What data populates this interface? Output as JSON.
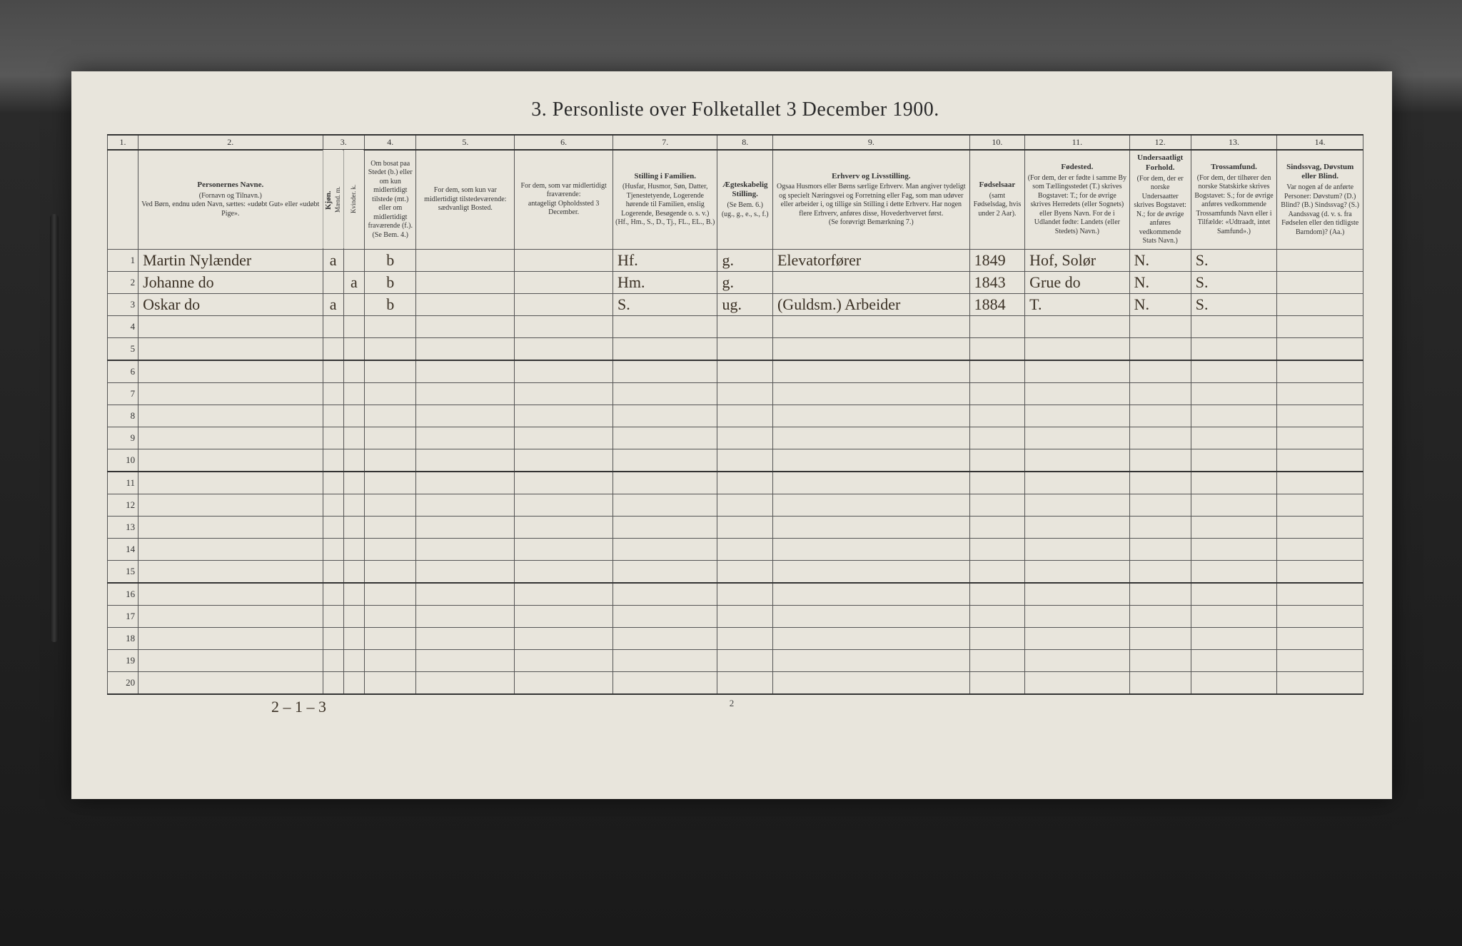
{
  "title": "3. Personliste over Folketallet 3 December 1900.",
  "page_number": "2",
  "footer_tally": "2 – 1 – 3",
  "columns": {
    "numbers": [
      "1.",
      "2.",
      "3.",
      "4.",
      "5.",
      "6.",
      "7.",
      "8.",
      "9.",
      "10.",
      "11.",
      "12.",
      "13.",
      "14."
    ],
    "widths_pct": [
      2.5,
      15,
      1.7,
      1.7,
      4.2,
      8,
      8,
      8.5,
      4.5,
      16,
      4.5,
      8.5,
      5,
      7,
      7
    ],
    "headers": [
      {
        "title": "",
        "text": ""
      },
      {
        "title": "Personernes Navne.",
        "text": "(Fornavn og Tilnavn.)\nVed Børn, endnu uden Navn, sættes: «udøbt Gut» eller «udøbt Pige»."
      },
      {
        "title": "Kjøn.",
        "text": "Mænd. m.",
        "sub": true
      },
      {
        "title": "",
        "text": "Kvinder. k.",
        "sub": true
      },
      {
        "title": "",
        "text": "Om bosat paa Stedet (b.) eller om kun midlertidigt tilstede (mt.) eller om midlertidigt fraværende (f.). (Se Bem. 4.)"
      },
      {
        "title": "",
        "text": "For dem, som kun var midlertidigt tilstedeværende:\nsædvanligt Bosted."
      },
      {
        "title": "",
        "text": "For dem, som var midlertidigt fraværende:\nantageligt Opholdssted 3 December."
      },
      {
        "title": "Stilling i Familien.",
        "text": "(Husfar, Husmor, Søn, Datter, Tjenestetyende, Logerende hørende til Familien, enslig Logerende, Besøgende o. s. v.)\n(Hf., Hm., S., D., Tj., FL., EL., B.)"
      },
      {
        "title": "Ægteskabelig Stilling.",
        "text": "(Se Bem. 6.)\n(ug., g., e., s., f.)"
      },
      {
        "title": "Erhverv og Livsstilling.",
        "text": "Ogsaa Husmors eller Børns særlige Erhverv. Man angiver tydeligt og specielt Næringsvei og Forretning eller Fag, som man udøver eller arbeider i, og tillige sin Stilling i dette Erhverv. Har nogen flere Erhverv, anføres disse, Hovederhvervet først.\n(Se forøvrigt Bemærkning 7.)"
      },
      {
        "title": "Fødselsaar",
        "text": "(samt Fødselsdag, hvis under 2 Aar)."
      },
      {
        "title": "Fødested.",
        "text": "(For dem, der er fødte i samme By som Tællingsstedet (T.) skrives Bogstavet: T.; for de øvrige skrives Herredets (eller Sognets) eller Byens Navn. For de i Udlandet fødte: Landets (eller Stedets) Navn.)"
      },
      {
        "title": "Undersaatligt Forhold.",
        "text": "(For dem, der er norske Undersaatter skrives Bogstavet: N.; for de øvrige anføres vedkommende Stats Navn.)"
      },
      {
        "title": "Trossamfund.",
        "text": "(For dem, der tilhører den norske Statskirke skrives Bogstavet: S.; for de øvrige anføres vedkommende Trossamfunds Navn eller i Tilfælde: «Udtraadt, intet Samfund».)"
      },
      {
        "title": "Sindssvag, Døvstum eller Blind.",
        "text": "Var nogen af de anførte Personer: Døvstum? (D.) Blind? (B.) Sindssvag? (S.) Aandssvag (d. v. s. fra Fødselen eller den tidligste Barndom)? (Aa.)"
      }
    ]
  },
  "rows": [
    {
      "n": "1",
      "name": "Martin Nylænder",
      "m": "a",
      "k": "",
      "b": "b",
      "c5": "",
      "c6": "",
      "fam": "Hf.",
      "ms": "g.",
      "occ": "Elevatorfører",
      "year": "1849",
      "bp": "Hof, Solør",
      "nat": "N.",
      "rel": "S.",
      "dis": ""
    },
    {
      "n": "2",
      "name": "Johanne   do",
      "m": "",
      "k": "a",
      "b": "b",
      "c5": "",
      "c6": "",
      "fam": "Hm.",
      "ms": "g.",
      "occ": "",
      "year": "1843",
      "bp": "Grue  do",
      "nat": "N.",
      "rel": "S.",
      "dis": ""
    },
    {
      "n": "3",
      "name": "Oskar     do",
      "m": "a",
      "k": "",
      "b": "b",
      "c5": "",
      "c6": "",
      "fam": "S.",
      "ms": "ug.",
      "occ": "(Guldsm.) Arbeider",
      "year": "1884",
      "bp": "T.",
      "nat": "N.",
      "rel": "S.",
      "dis": ""
    },
    {
      "n": "4"
    },
    {
      "n": "5"
    },
    {
      "n": "6"
    },
    {
      "n": "7"
    },
    {
      "n": "8"
    },
    {
      "n": "9"
    },
    {
      "n": "10"
    },
    {
      "n": "11"
    },
    {
      "n": "12"
    },
    {
      "n": "13"
    },
    {
      "n": "14"
    },
    {
      "n": "15"
    },
    {
      "n": "16"
    },
    {
      "n": "17"
    },
    {
      "n": "18"
    },
    {
      "n": "19"
    },
    {
      "n": "20"
    }
  ],
  "colors": {
    "page_bg": "#e8e5dc",
    "border": "#555555",
    "heavy_border": "#333333",
    "text": "#333333",
    "handwriting": "#3a3024",
    "outer_bg": "#1a1a1a"
  }
}
